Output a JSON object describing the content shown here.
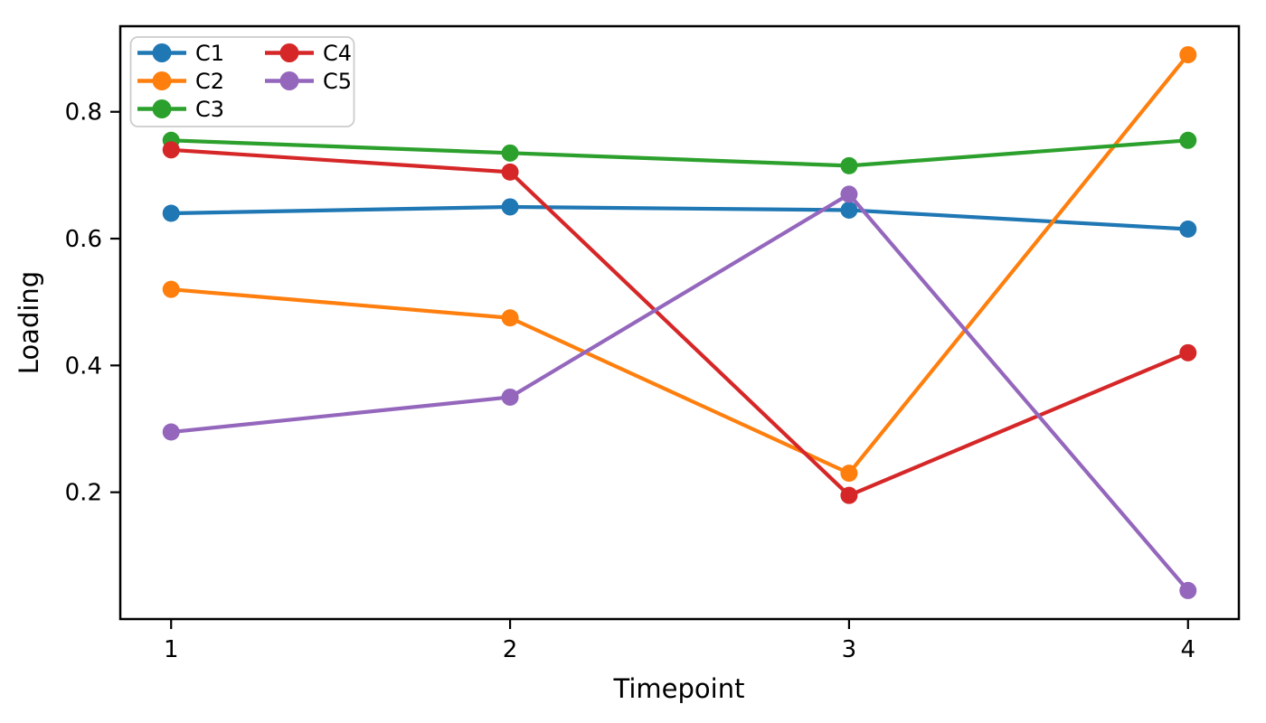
{
  "figure": {
    "background": "#ffffff",
    "frame_color": "#000000"
  },
  "chart_data": {
    "type": "line",
    "title": "",
    "xlabel": "Timepoint",
    "ylabel": "Loading",
    "x": [
      1,
      2,
      3,
      4
    ],
    "xticks": [
      "1",
      "2",
      "3",
      "4"
    ],
    "yticks": [
      0.2,
      0.4,
      0.6,
      0.8
    ],
    "xlim": [
      0.85,
      4.15
    ],
    "ylim": [
      0.0,
      0.935
    ],
    "grid": false,
    "legend_position": "upper-left",
    "legend_columns": 2,
    "series": [
      {
        "name": "C1",
        "color": "#1f77b4",
        "values": [
          0.64,
          0.65,
          0.645,
          0.615
        ]
      },
      {
        "name": "C2",
        "color": "#ff7f0e",
        "values": [
          0.52,
          0.475,
          0.23,
          0.89
        ]
      },
      {
        "name": "C3",
        "color": "#2ca02c",
        "values": [
          0.755,
          0.735,
          0.715,
          0.755
        ]
      },
      {
        "name": "C4",
        "color": "#d62728",
        "values": [
          0.74,
          0.705,
          0.195,
          0.42
        ]
      },
      {
        "name": "C5",
        "color": "#9467bd",
        "values": [
          0.295,
          0.35,
          0.67,
          0.045
        ]
      }
    ]
  }
}
